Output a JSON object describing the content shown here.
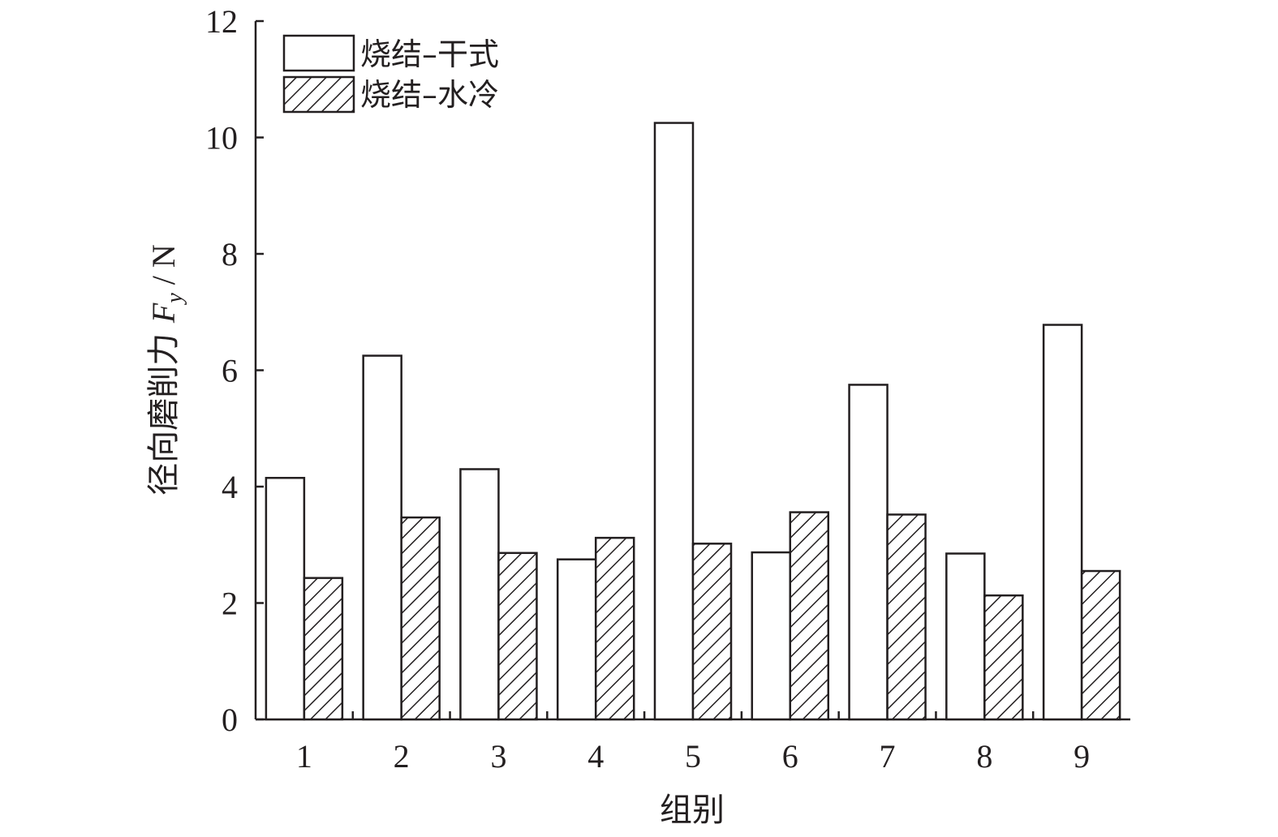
{
  "chart_data": {
    "type": "bar",
    "categories": [
      "1",
      "2",
      "3",
      "4",
      "5",
      "6",
      "7",
      "8",
      "9"
    ],
    "series": [
      {
        "name": "烧结–干式",
        "pattern": "none",
        "values": [
          4.15,
          6.25,
          4.3,
          2.75,
          10.25,
          2.87,
          5.75,
          2.85,
          6.78
        ]
      },
      {
        "name": "烧结–水冷",
        "pattern": "hatch",
        "values": [
          2.43,
          3.47,
          2.86,
          3.12,
          3.02,
          3.56,
          3.52,
          2.13,
          2.55
        ]
      }
    ],
    "xlabel": "组别",
    "ylabel": {
      "main": "径向磨削力 ",
      "var": "F",
      "sub": "y",
      "unit": " / N"
    },
    "ylim": [
      0,
      12
    ],
    "yticks": [
      "0",
      "2",
      "4",
      "6",
      "8",
      "10",
      "12"
    ],
    "grid": false,
    "legend_position": "top-left",
    "colors": {
      "stroke": "#231f20",
      "fill": "#ffffff"
    }
  }
}
